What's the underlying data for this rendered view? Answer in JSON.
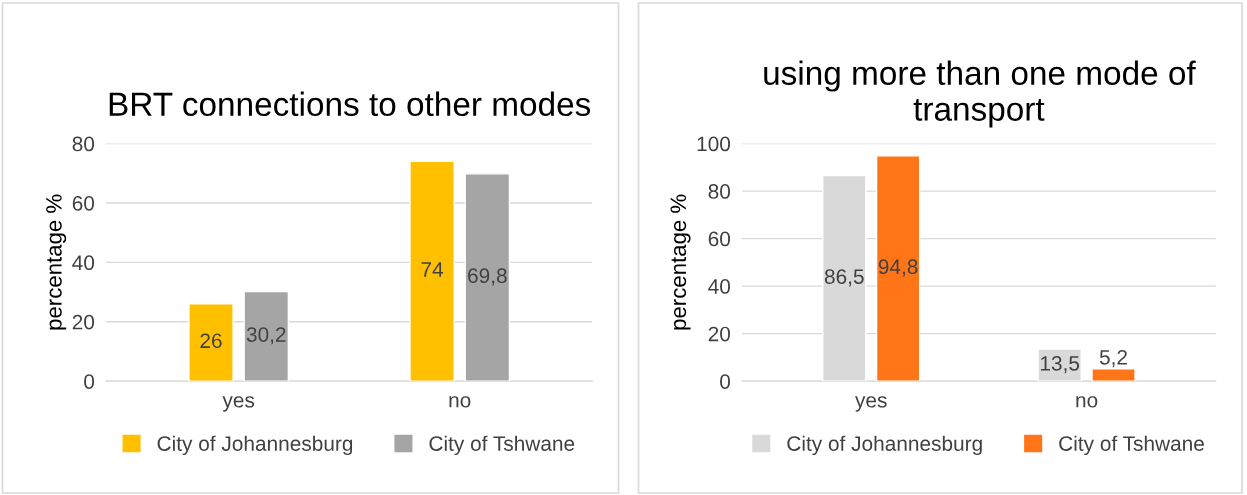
{
  "chart_data": [
    {
      "type": "bar",
      "title": "BRT connections to other modes",
      "ylabel": "percentage %",
      "categories": [
        "yes",
        "no"
      ],
      "ylim": [
        0,
        80
      ],
      "yticks": [
        0,
        20,
        40,
        60,
        80
      ],
      "grid": "y",
      "legend": "bottom",
      "series": [
        {
          "name": "City of Johannesburg",
          "color": "#ffc000",
          "values": [
            26,
            74
          ],
          "value_labels": [
            "26",
            "74"
          ]
        },
        {
          "name": "City of Tshwane",
          "color": "#a5a5a5",
          "values": [
            30.2,
            69.8
          ],
          "value_labels": [
            "30,2",
            "69,8"
          ]
        }
      ]
    },
    {
      "type": "bar",
      "title": "using more than one mode of transport",
      "ylabel": "percentage %",
      "categories": [
        "yes",
        "no"
      ],
      "ylim": [
        0,
        100
      ],
      "yticks": [
        0,
        20,
        40,
        60,
        80,
        100
      ],
      "grid": "y",
      "legend": "bottom",
      "series": [
        {
          "name": "City of Johannesburg",
          "color": "#d9d9d9",
          "values": [
            86.5,
            13.5
          ],
          "value_labels": [
            "86,5",
            "13,5"
          ]
        },
        {
          "name": "City of Tshwane",
          "color": "#ff7518",
          "values": [
            94.8,
            5.2
          ],
          "value_labels": [
            "94,8",
            "5,2"
          ]
        }
      ]
    }
  ]
}
